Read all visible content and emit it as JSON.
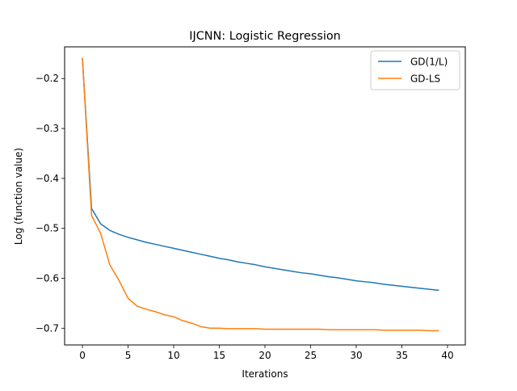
{
  "chart_data": {
    "type": "line",
    "title": "IJCNN: Logistic Regression",
    "xlabel": "Iterations",
    "ylabel": "Log (function value)",
    "xlim": [
      -1.95,
      41.95
    ],
    "ylim": [
      -0.7335,
      -0.1365
    ],
    "xticks": [
      0,
      5,
      10,
      15,
      20,
      25,
      30,
      35,
      40
    ],
    "xtick_labels": [
      "0",
      "5",
      "10",
      "15",
      "20",
      "25",
      "30",
      "35",
      "40"
    ],
    "yticks": [
      -0.2,
      -0.3,
      -0.4,
      -0.5,
      -0.6,
      -0.7
    ],
    "ytick_labels": [
      "−0.2",
      "−0.3",
      "−0.4",
      "−0.5",
      "−0.6",
      "−0.7"
    ],
    "grid": false,
    "legend_position": "upper-right",
    "x": [
      0,
      1,
      2,
      3,
      4,
      5,
      6,
      7,
      8,
      9,
      10,
      11,
      12,
      13,
      14,
      15,
      16,
      17,
      18,
      19,
      20,
      21,
      22,
      23,
      24,
      25,
      26,
      27,
      28,
      29,
      30,
      31,
      32,
      33,
      34,
      35,
      36,
      37,
      38,
      39
    ],
    "series": [
      {
        "name": "GD(1/L)",
        "color": "#1f77b4",
        "values": [
          -0.16,
          -0.46,
          -0.491,
          -0.504,
          -0.512,
          -0.518,
          -0.523,
          -0.528,
          -0.532,
          -0.536,
          -0.54,
          -0.544,
          -0.548,
          -0.552,
          -0.556,
          -0.56,
          -0.563,
          -0.567,
          -0.57,
          -0.573,
          -0.577,
          -0.58,
          -0.583,
          -0.586,
          -0.589,
          -0.591,
          -0.594,
          -0.597,
          -0.599,
          -0.602,
          -0.605,
          -0.607,
          -0.609,
          -0.612,
          -0.614,
          -0.616,
          -0.618,
          -0.62,
          -0.622,
          -0.624
        ]
      },
      {
        "name": "GD-LS",
        "color": "#ff7f0e",
        "values": [
          -0.16,
          -0.474,
          -0.51,
          -0.573,
          -0.604,
          -0.64,
          -0.656,
          -0.662,
          -0.667,
          -0.673,
          -0.677,
          -0.685,
          -0.69,
          -0.697,
          -0.7,
          -0.7,
          -0.701,
          -0.701,
          -0.701,
          -0.701,
          -0.702,
          -0.702,
          -0.702,
          -0.702,
          -0.702,
          -0.702,
          -0.702,
          -0.703,
          -0.703,
          -0.703,
          -0.703,
          -0.703,
          -0.703,
          -0.704,
          -0.704,
          -0.704,
          -0.704,
          -0.704,
          -0.705,
          -0.705
        ]
      }
    ]
  }
}
